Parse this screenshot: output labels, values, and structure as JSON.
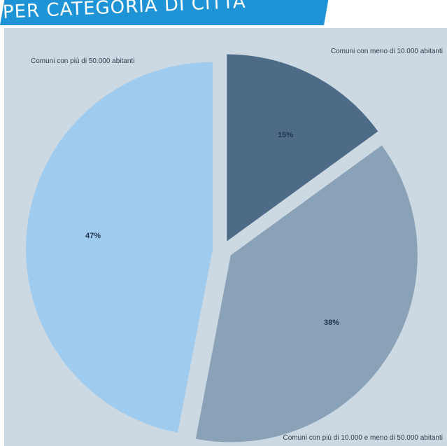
{
  "banner": {
    "title": "PER CATEGORIA DI CITTÀ",
    "color": "#1e94d6"
  },
  "chart_data": {
    "type": "pie",
    "title": "PER CATEGORIA DI CITTÀ",
    "background": "#ccd8e2",
    "slices": [
      {
        "label": "Comuni con meno di 10.000 abitanti",
        "value": 15,
        "display": "15%",
        "color": "#4d6b86",
        "exploded": true
      },
      {
        "label": "Comuni con più di 10.000 e meno di 50.000 abitanti",
        "value": 38,
        "display": "38%",
        "color": "#8aa2b8",
        "exploded": true
      },
      {
        "label": "Comuni con più di 50.000 abitanti",
        "value": 47,
        "display": "47%",
        "color": "#9ecbee",
        "exploded": true
      }
    ]
  }
}
